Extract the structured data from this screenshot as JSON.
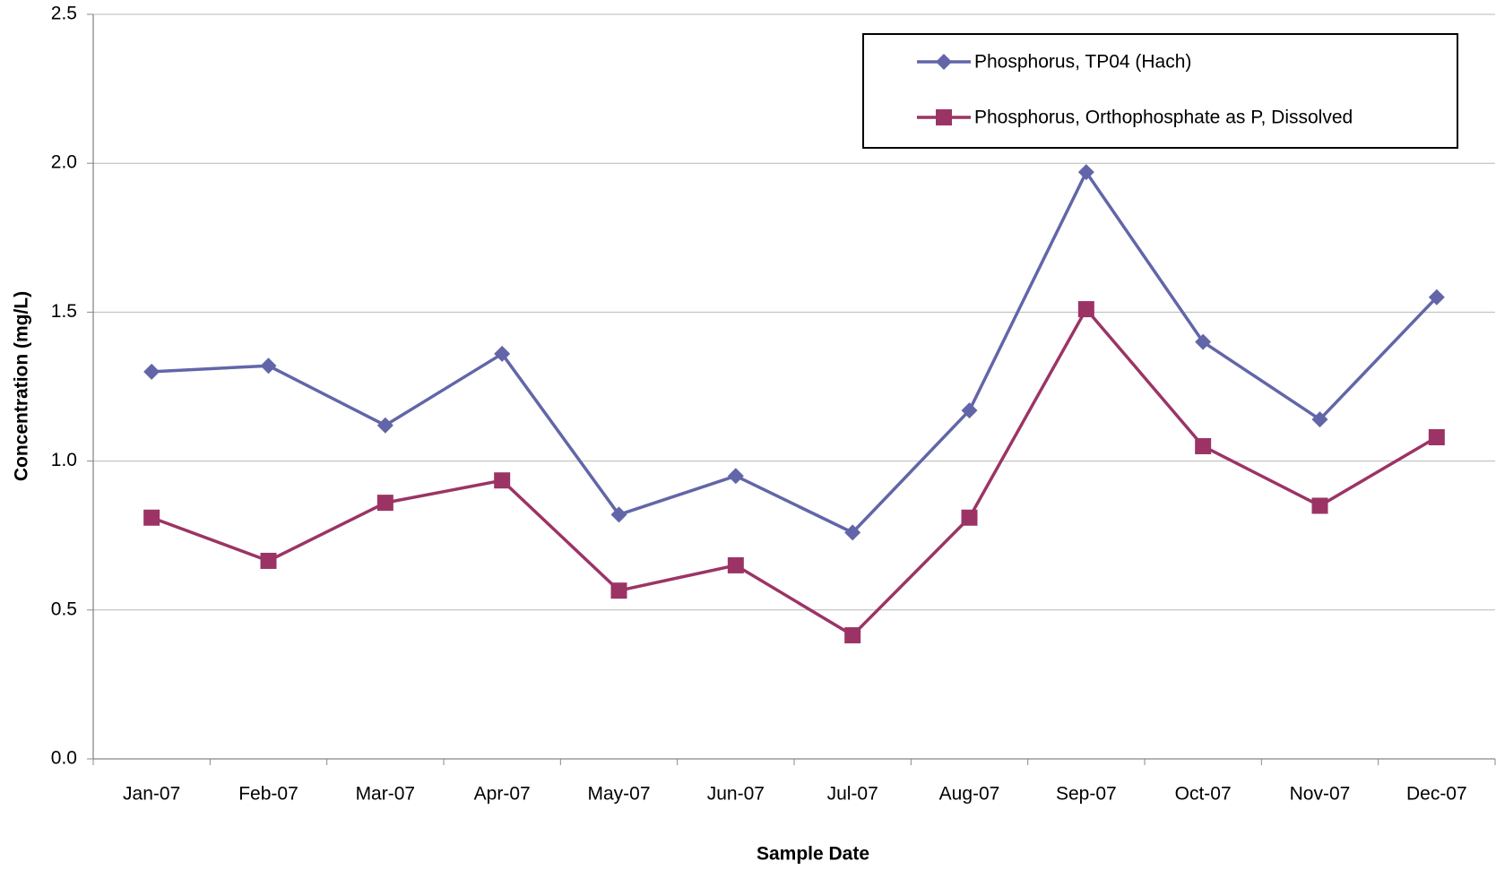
{
  "chart_data": {
    "type": "line",
    "xlabel": "Sample Date",
    "ylabel": "Concentration (mg/L)",
    "categories": [
      "Jan-07",
      "Feb-07",
      "Mar-07",
      "Apr-07",
      "May-07",
      "Jun-07",
      "Jul-07",
      "Aug-07",
      "Sep-07",
      "Oct-07",
      "Nov-07",
      "Dec-07"
    ],
    "series": [
      {
        "name": "Phosphorus, TP04 (Hach)",
        "color": "#6266a8",
        "marker": "diamond",
        "values": [
          1.3,
          1.32,
          1.12,
          1.36,
          0.82,
          0.95,
          0.76,
          1.17,
          1.97,
          1.4,
          1.14,
          1.55
        ]
      },
      {
        "name": "Phosphorus, Orthophosphate as P, Dissolved",
        "color": "#9b3465",
        "marker": "square",
        "values": [
          0.81,
          0.665,
          0.86,
          0.935,
          0.565,
          0.65,
          0.415,
          0.81,
          1.51,
          1.05,
          0.85,
          1.08
        ]
      }
    ],
    "ylim": [
      0,
      2.5
    ],
    "yticks": [
      {
        "value": 0,
        "label": "0.0"
      },
      0.5,
      {
        "value": 1,
        "label": "1.0"
      },
      1.5,
      {
        "value": 2,
        "label": "2.0"
      },
      2.5
    ],
    "grid": true,
    "legend": "top-right"
  }
}
